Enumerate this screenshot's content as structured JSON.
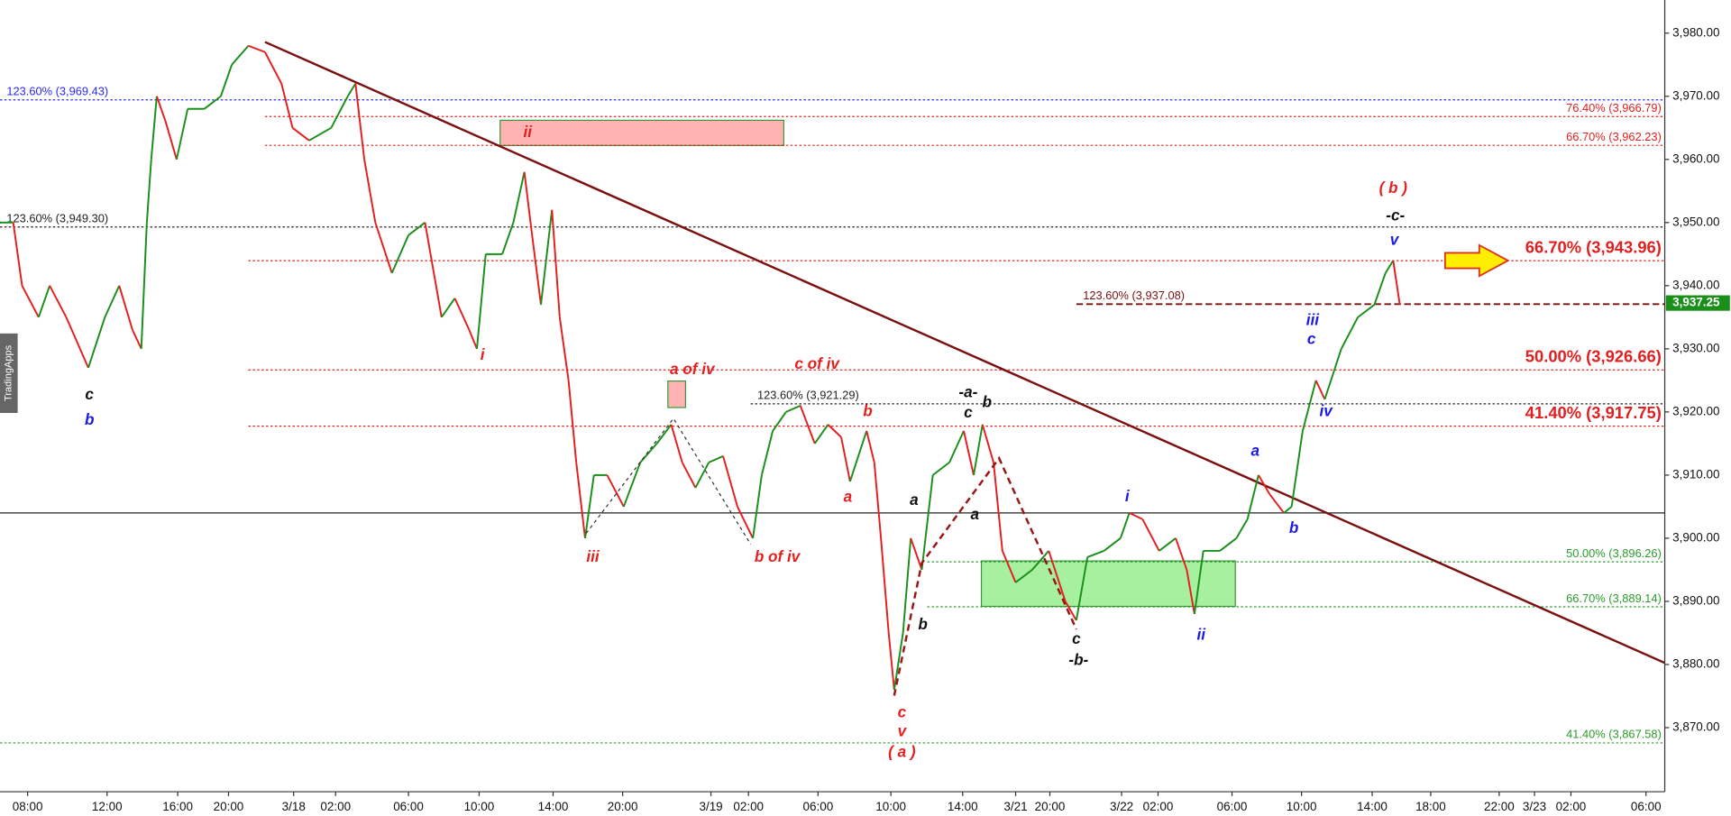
{
  "chart_data": {
    "type": "line",
    "watermark": "TradingApps",
    "xlim": [
      0,
      377
    ],
    "ylim": [
      3859.85,
      3985.25
    ],
    "xticks": [
      {
        "value": 6.25,
        "label": "08:00"
      },
      {
        "value": 24.25,
        "label": "12:00"
      },
      {
        "value": 40.25,
        "label": "16:00"
      },
      {
        "value": 51.75,
        "label": "20:00"
      },
      {
        "value": 66.5,
        "label": "3/18"
      },
      {
        "value": 76,
        "label": "02:00"
      },
      {
        "value": 92.5,
        "label": "06:00"
      },
      {
        "value": 108.5,
        "label": "10:00"
      },
      {
        "value": 125.25,
        "label": "14:00"
      },
      {
        "value": 141,
        "label": "20:00"
      },
      {
        "value": 161,
        "label": "3/19"
      },
      {
        "value": 169.5,
        "label": "02:00"
      },
      {
        "value": 185.25,
        "label": "06:00"
      },
      {
        "value": 201.75,
        "label": "10:00"
      },
      {
        "value": 218,
        "label": "14:00"
      },
      {
        "value": 230,
        "label": "3/21"
      },
      {
        "value": 237.75,
        "label": "20:00"
      },
      {
        "value": 254,
        "label": "3/22"
      },
      {
        "value": 262.25,
        "label": "02:00"
      },
      {
        "value": 279,
        "label": "06:00"
      },
      {
        "value": 294.75,
        "label": "10:00"
      },
      {
        "value": 310.75,
        "label": "14:00"
      },
      {
        "value": 324,
        "label": "18:00"
      },
      {
        "value": 339.5,
        "label": "22:00"
      },
      {
        "value": 347.5,
        "label": "3/23"
      },
      {
        "value": 355.75,
        "label": "02:00"
      },
      {
        "value": 372.75,
        "label": "06:00"
      }
    ],
    "yticks": [
      {
        "value": 3870,
        "label": "3,870.00"
      },
      {
        "value": 3880,
        "label": "3,880.00"
      },
      {
        "value": 3890,
        "label": "3,890.00"
      },
      {
        "value": 3900,
        "label": "3,900.00"
      },
      {
        "value": 3910,
        "label": "3,910.00"
      },
      {
        "value": 3920,
        "label": "3,920.00"
      },
      {
        "value": 3930,
        "label": "3,930.00"
      },
      {
        "value": 3940,
        "label": "3,940.00"
      },
      {
        "value": 3950,
        "label": "3,950.00"
      },
      {
        "value": 3960,
        "label": "3,960.00"
      },
      {
        "value": 3970,
        "label": "3,970.00"
      },
      {
        "value": 3980,
        "label": "3,980.00"
      }
    ],
    "x": [
      0,
      3,
      5,
      8.75,
      11.25,
      15,
      20,
      23.75,
      27,
      30,
      32,
      33.25,
      34.25,
      35.5,
      37.5,
      40,
      42.5,
      46.25,
      50,
      52.5,
      56.25,
      60,
      63.75,
      66.25,
      70,
      75,
      78.75,
      80.5,
      82.5,
      85,
      88.75,
      92.5,
      96.25,
      100,
      103,
      106.25,
      108,
      110,
      113.75,
      116.25,
      118.75,
      120.5,
      122.5,
      125,
      126.75,
      128.75,
      130.5,
      132.5,
      134.5,
      137.5,
      141.25,
      145,
      148.75,
      152,
      154.5,
      157.5,
      160.5,
      163.75,
      167,
      170.5,
      172.5,
      175,
      178,
      181.25,
      184.5,
      187.5,
      190.5,
      192.5,
      196.25,
      198,
      199.5,
      201.25,
      202.5,
      204.5,
      206.25,
      208.75,
      211.25,
      215,
      218.25,
      220.5,
      222.5,
      225,
      227,
      230,
      233.75,
      237.5,
      241.25,
      243.75,
      246.25,
      250,
      253.75,
      255.75,
      258.75,
      262.5,
      266.25,
      268.75,
      270.5,
      272.5,
      276.25,
      280,
      282.5,
      285,
      287.5,
      290.75,
      292.5,
      295,
      298,
      300,
      303.75,
      307.5,
      311.25,
      313.75,
      315.5,
      317
    ],
    "values": [
      3950,
      3950,
      3940,
      3935,
      3940,
      3935,
      3927,
      3935,
      3940,
      3933,
      3930,
      3950,
      3960,
      3970,
      3966,
      3960,
      3968,
      3968,
      3970,
      3975,
      3978,
      3977,
      3972,
      3965,
      3963,
      3965,
      3970,
      3972,
      3960,
      3950,
      3942,
      3948,
      3950,
      3935,
      3938,
      3933,
      3930,
      3945,
      3945,
      3950,
      3958,
      3948,
      3937,
      3952,
      3935,
      3925,
      3912,
      3900,
      3910,
      3910,
      3905,
      3912,
      3915,
      3918,
      3912,
      3908,
      3912,
      3913,
      3905,
      3900,
      3910,
      3917,
      3920,
      3921,
      3915,
      3918,
      3916,
      3909,
      3917,
      3912,
      3900,
      3885,
      3876,
      3885,
      3900,
      3895,
      3910,
      3912,
      3917,
      3910,
      3918,
      3912,
      3898,
      3893,
      3895,
      3898,
      3890,
      3887,
      3897,
      3898,
      3900,
      3904,
      3903,
      3898,
      3900,
      3895,
      3888,
      3898,
      3898,
      3900,
      3903,
      3910,
      3907,
      3904,
      3905,
      3917,
      3925,
      3922,
      3930,
      3935,
      3937,
      3942,
      3944,
      3937
    ],
    "up_color": "#1a8f1a",
    "down_color": "#e61e1e",
    "reference_line": 3904,
    "last_price": {
      "value": 3937.25,
      "label": "3,937.25"
    },
    "trendline": {
      "from": [
        60,
        3978.6
      ],
      "to": [
        392,
        3875.6
      ],
      "color": "#7b1010"
    },
    "levels": [
      {
        "value": 3969.43,
        "label": "123.60% (3,969.43)",
        "color": "#2a2af0",
        "from": 0,
        "label_at": "left",
        "style": "dotted"
      },
      {
        "value": 3966.79,
        "label": "76.40% (3,966.79)",
        "color": "#e02020",
        "from": 60,
        "label_at": "right",
        "style": "dotted"
      },
      {
        "value": 3962.23,
        "label": "66.70% (3,962.23)",
        "color": "#e02020",
        "from": 60,
        "label_at": "right",
        "style": "dotted"
      },
      {
        "value": 3949.3,
        "label": "123.60% (3,949.30)",
        "color": "#222222",
        "from": 0,
        "label_at": "left",
        "style": "dotted"
      },
      {
        "value": 3943.96,
        "label": "66.70% (3,943.96)",
        "color": "#e02020",
        "from": 56.25,
        "label_at": "right",
        "style": "dotted",
        "emphasis": true
      },
      {
        "value": 3937.08,
        "label": "123.60% (3,937.08)",
        "color": "#7b1010",
        "from": 243.75,
        "label_at": "start",
        "style": "dashed"
      },
      {
        "value": 3926.66,
        "label": "50.00% (3,926.66)",
        "color": "#e02020",
        "from": 56.25,
        "label_at": "right",
        "style": "dotted",
        "emphasis": true
      },
      {
        "value": 3921.29,
        "label": "123.60% (3,921.29)",
        "color": "#222222",
        "from": 170,
        "label_at": "start",
        "style": "dotted"
      },
      {
        "value": 3917.75,
        "label": "41.40% (3,917.75)",
        "color": "#e02020",
        "from": 56.25,
        "label_at": "right",
        "style": "dotted",
        "emphasis": true
      },
      {
        "value": 3896.26,
        "label": "50.00% (3,896.26)",
        "color": "#2a9a2a",
        "from": 210,
        "label_at": "right",
        "style": "dotted"
      },
      {
        "value": 3889.14,
        "label": "66.70% (3,889.14)",
        "color": "#2a9a2a",
        "from": 210,
        "label_at": "right",
        "style": "dotted"
      },
      {
        "value": 3867.58,
        "label": "41.40% (3,867.58)",
        "color": "#2a9a2a",
        "from": 0,
        "label_at": "right",
        "style": "dotted"
      }
    ],
    "boxes": [
      {
        "from": 113.25,
        "to": 177.5,
        "low": 3962.2,
        "high": 3966.2,
        "color": "#ffb3b3",
        "label": "ii"
      },
      {
        "from": 151.25,
        "to": 155.25,
        "low": 3920.7,
        "high": 3924.9,
        "color": "#ffb3b3"
      },
      {
        "from": 222.25,
        "to": 279.75,
        "low": 3889.2,
        "high": 3896.4,
        "color": "#a6f0a0"
      }
    ],
    "annotations": [
      {
        "text": "c",
        "x": 20.25,
        "y": 3922.6,
        "color": "#111111"
      },
      {
        "text": "b",
        "x": 20.25,
        "y": 3918.6,
        "color": "#1a1ae6"
      },
      {
        "text": "i",
        "x": 109.25,
        "y": 3928.9,
        "color": "#e61e1e"
      },
      {
        "text": "iii",
        "x": 134.25,
        "y": 3896.9,
        "color": "#e61e1e"
      },
      {
        "text": "a of iv",
        "x": 156.75,
        "y": 3926.6,
        "color": "#e61e1e"
      },
      {
        "text": "b of iv",
        "x": 176,
        "y": 3896.9,
        "color": "#e61e1e"
      },
      {
        "text": "c of iv",
        "x": 185,
        "y": 3927.5,
        "color": "#e61e1e"
      },
      {
        "text": "b",
        "x": 196.5,
        "y": 3920.0,
        "color": "#e61e1e"
      },
      {
        "text": "a",
        "x": 192,
        "y": 3906.4,
        "color": "#e61e1e"
      },
      {
        "text": "c",
        "x": 204.25,
        "y": 3872.3,
        "color": "#e61e1e"
      },
      {
        "text": "v",
        "x": 204.25,
        "y": 3869.3,
        "color": "#e61e1e"
      },
      {
        "text": "( a )",
        "x": 204.25,
        "y": 3866.0,
        "color": "#e61e1e"
      },
      {
        "text": "a",
        "x": 207,
        "y": 3905.9,
        "color": "#111111"
      },
      {
        "text": "b",
        "x": 209,
        "y": 3886.2,
        "color": "#111111"
      },
      {
        "text": "-a-",
        "x": 219.25,
        "y": 3923.0,
        "color": "#111111"
      },
      {
        "text": "c",
        "x": 219.25,
        "y": 3919.8,
        "color": "#111111"
      },
      {
        "text": "b",
        "x": 223.5,
        "y": 3921.4,
        "color": "#111111"
      },
      {
        "text": "a",
        "x": 220.75,
        "y": 3903.6,
        "color": "#111111"
      },
      {
        "text": "c",
        "x": 243.75,
        "y": 3883.9,
        "color": "#111111"
      },
      {
        "text": "-b-",
        "x": 244.25,
        "y": 3880.6,
        "color": "#111111"
      },
      {
        "text": "i",
        "x": 255.25,
        "y": 3906.5,
        "color": "#1a1ae6"
      },
      {
        "text": "ii",
        "x": 272,
        "y": 3884.6,
        "color": "#1a1ae6"
      },
      {
        "text": "a",
        "x": 284.25,
        "y": 3913.7,
        "color": "#1a1ae6"
      },
      {
        "text": "b",
        "x": 293,
        "y": 3901.5,
        "color": "#1a1ae6"
      },
      {
        "text": "iii",
        "x": 297.25,
        "y": 3934.4,
        "color": "#1a1ae6"
      },
      {
        "text": "c",
        "x": 297,
        "y": 3931.4,
        "color": "#1a1ae6"
      },
      {
        "text": "iv",
        "x": 300.25,
        "y": 3920.0,
        "color": "#1a1ae6"
      },
      {
        "text": "( b )",
        "x": 315.5,
        "y": 3955.3,
        "color": "#e61e1e"
      },
      {
        "text": "-c-",
        "x": 316,
        "y": 3951.0,
        "color": "#111111"
      },
      {
        "text": "v",
        "x": 315.75,
        "y": 3947.1,
        "color": "#1a1ae6"
      }
    ]
  }
}
